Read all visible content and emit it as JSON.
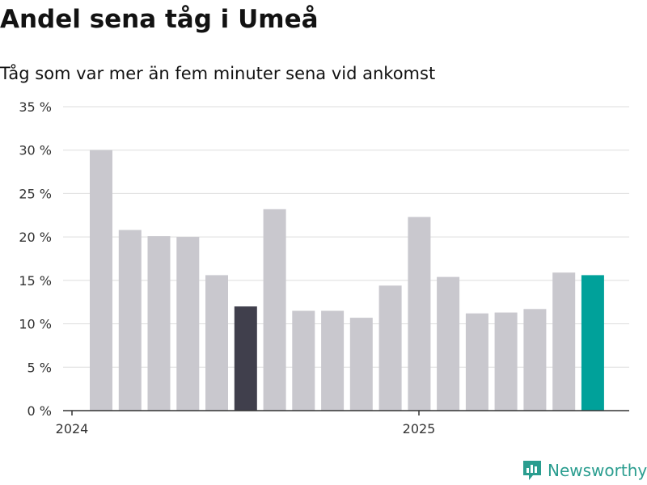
{
  "title": "Andel sena tåg i Umeå",
  "subtitle": "Tåg som var mer än fem minuter sena vid ankomst",
  "brand": {
    "name": "Newsworthy",
    "icon": "newsworthy-logo-icon",
    "color": "#2a9d8f"
  },
  "colors": {
    "bar": "#c9c8ce",
    "highlight_dark": "#403f4c",
    "highlight_accent": "#00a19a",
    "grid": "#dddddd",
    "axis": "#333333"
  },
  "chart_data": {
    "type": "bar",
    "title": "Andel sena tåg i Umeå",
    "subtitle": "Tåg som var mer än fem minuter sena vid ankomst",
    "xlabel": "",
    "ylabel": "",
    "x_tick_labels": [
      "2024",
      "2025"
    ],
    "y_tick_labels": [
      "0 %",
      "5 %",
      "10 %",
      "15 %",
      "20 %",
      "25 %",
      "30 %",
      "35 %"
    ],
    "ylim": [
      0,
      35
    ],
    "grid": true,
    "values": [
      30.0,
      20.8,
      20.1,
      20.0,
      15.6,
      12.0,
      23.2,
      11.5,
      11.5,
      10.7,
      14.4,
      22.3,
      15.4,
      11.2,
      11.3,
      11.7,
      15.9,
      15.6
    ],
    "highlight": {
      "5": "dark",
      "17": "accent"
    }
  }
}
